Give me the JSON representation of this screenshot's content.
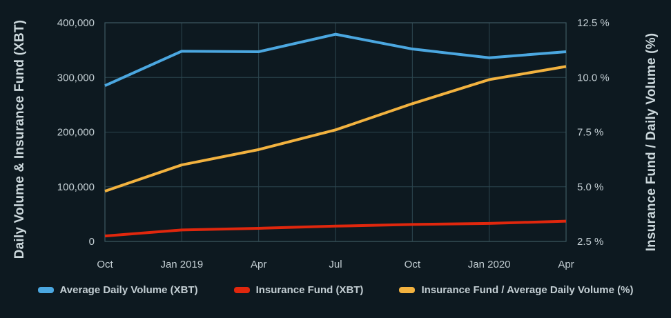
{
  "theme": {
    "background": "#0d1920",
    "grid_color": "#2d4750",
    "frame_color": "#3d5962",
    "tick_text_color": "#c3ced3",
    "axis_title_color": "#ccd8dc",
    "legend_text_color": "#c3ced3"
  },
  "chart_data": {
    "type": "line",
    "categories": [
      "Oct",
      "Jan 2019",
      "Apr",
      "Jul",
      "Oct",
      "Jan 2020",
      "Apr"
    ],
    "series": [
      {
        "name": "Average Daily Volume (XBT)",
        "axis": "left",
        "color": "#4ba7e0",
        "values": [
          285000,
          348000,
          347000,
          379000,
          352000,
          336000,
          347000
        ]
      },
      {
        "name": "Insurance Fund (XBT)",
        "axis": "left",
        "color": "#e0270d",
        "values": [
          10000,
          21000,
          24000,
          28000,
          31000,
          33000,
          37000
        ]
      },
      {
        "name": "Insurance Fund / Average Daily Volume (%)",
        "axis": "right",
        "color": "#f2b23f",
        "values": [
          4.8,
          6.0,
          6.7,
          7.6,
          8.8,
          9.9,
          10.5
        ]
      }
    ],
    "left_axis": {
      "label": "Daily Volume & Insurance Fund (XBT)",
      "range": [
        0,
        400000
      ],
      "tick_values": [
        0,
        100000,
        200000,
        300000,
        400000
      ],
      "tick_labels": [
        "0",
        "100,000",
        "200,000",
        "300,000",
        "400,000"
      ]
    },
    "right_axis": {
      "label": "Insurance Fund / Daily Volume (%)",
      "range": [
        2.5,
        12.5
      ],
      "tick_values": [
        2.5,
        5.0,
        7.5,
        10.0,
        12.5
      ],
      "tick_labels": [
        "2.5 %",
        "5.0 %",
        "7.5 %",
        "10.0 %",
        "12.5 %"
      ]
    },
    "grid": true,
    "legend_position": "bottom"
  }
}
